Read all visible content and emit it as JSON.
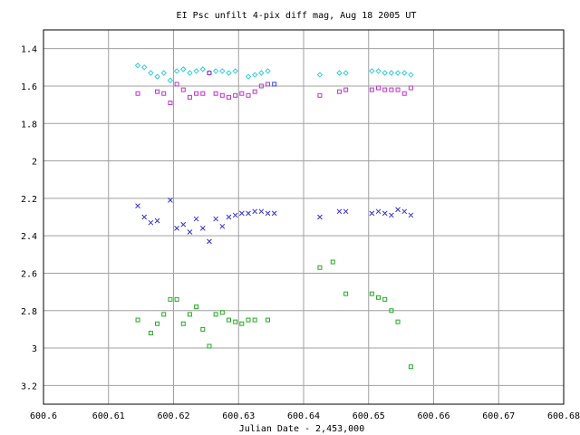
{
  "chart_data": {
    "type": "scatter",
    "title": "EI Psc unfilt 4-pix diff mag, Aug 18 2005 UT",
    "xlabel": "Julian Date - 2,453,000",
    "ylabel": "",
    "xlim": [
      600.6,
      600.68
    ],
    "ylim": [
      3.3,
      1.3
    ],
    "y_inverted": true,
    "grid": true,
    "legend": "none",
    "xticks": [
      "600.6",
      "600.61",
      "600.62",
      "600.63",
      "600.64",
      "600.65",
      "600.66",
      "600.67",
      "600.68"
    ],
    "yticks": [
      "1.4",
      "1.6",
      "1.8",
      "2",
      "2.2",
      "2.4",
      "2.6",
      "2.8",
      "3",
      "3.2"
    ],
    "series": [
      {
        "marker": "diamond",
        "color": "#33ccdd",
        "x": [
          600.6145,
          600.6155,
          600.6165,
          600.6175,
          600.6185,
          600.6195,
          600.6205,
          600.6215,
          600.6225,
          600.6235,
          600.6245,
          600.6255,
          600.6265,
          600.6275,
          600.6285,
          600.6295,
          600.6315,
          600.6325,
          600.6335,
          600.6345,
          600.6425,
          600.6455,
          600.6465,
          600.6505,
          600.6515,
          600.6525,
          600.6535,
          600.6545,
          600.6555,
          600.6565
        ],
        "y": [
          1.49,
          1.5,
          1.53,
          1.55,
          1.53,
          1.57,
          1.52,
          1.51,
          1.53,
          1.52,
          1.51,
          1.53,
          1.52,
          1.52,
          1.53,
          1.52,
          1.55,
          1.54,
          1.53,
          1.52,
          1.54,
          1.53,
          1.53,
          1.52,
          1.52,
          1.53,
          1.53,
          1.53,
          1.53,
          1.54
        ]
      },
      {
        "marker": "square",
        "color": "#bb33cc",
        "x": [
          600.6145,
          600.6175,
          600.6185,
          600.6195,
          600.6205,
          600.6215,
          600.6225,
          600.6235,
          600.6245,
          600.6255,
          600.6265,
          600.6275,
          600.6285,
          600.6295,
          600.6305,
          600.6315,
          600.6325,
          600.6335,
          600.6345,
          600.6425,
          600.6455,
          600.6465,
          600.6505,
          600.6515,
          600.6525,
          600.6535,
          600.6545,
          600.6555,
          600.6565
        ],
        "y": [
          1.64,
          1.63,
          1.64,
          1.69,
          1.59,
          1.62,
          1.66,
          1.64,
          1.64,
          1.53,
          1.64,
          1.65,
          1.66,
          1.65,
          1.64,
          1.65,
          1.63,
          1.6,
          1.59,
          1.65,
          1.63,
          1.62,
          1.62,
          1.61,
          1.62,
          1.62,
          1.62,
          1.64,
          1.61
        ]
      },
      {
        "marker": "square",
        "color": "#3344cc",
        "x": [
          600.6355
        ],
        "y": [
          1.59
        ]
      },
      {
        "marker": "cross",
        "color": "#3333cc",
        "x": [
          600.6145,
          600.6155,
          600.6165,
          600.6175,
          600.6195,
          600.6205,
          600.6215,
          600.6225,
          600.6235,
          600.6245,
          600.6255,
          600.6265,
          600.6275,
          600.6285,
          600.6295,
          600.6305,
          600.6315,
          600.6325,
          600.6335,
          600.6345,
          600.6355,
          600.6425,
          600.6455,
          600.6465,
          600.6505,
          600.6515,
          600.6525,
          600.6535,
          600.6545,
          600.6555,
          600.6565
        ],
        "y": [
          2.24,
          2.3,
          2.33,
          2.32,
          2.21,
          2.36,
          2.34,
          2.38,
          2.31,
          2.36,
          2.43,
          2.31,
          2.35,
          2.3,
          2.29,
          2.28,
          2.28,
          2.27,
          2.27,
          2.28,
          2.28,
          2.3,
          2.27,
          2.27,
          2.28,
          2.27,
          2.28,
          2.29,
          2.26,
          2.27,
          2.29
        ]
      },
      {
        "marker": "square",
        "color": "#22aa22",
        "x": [
          600.6145,
          600.6165,
          600.6175,
          600.6185,
          600.6195,
          600.6205,
          600.6215,
          600.6225,
          600.6235,
          600.6245,
          600.6255,
          600.6265,
          600.6275,
          600.6285,
          600.6295,
          600.6305,
          600.6315,
          600.6325,
          600.6345,
          600.6425,
          600.6445,
          600.6465,
          600.6505,
          600.6515,
          600.6525,
          600.6535,
          600.6545,
          600.6565
        ],
        "y": [
          2.85,
          2.92,
          2.87,
          2.82,
          2.74,
          2.74,
          2.87,
          2.82,
          2.78,
          2.9,
          2.99,
          2.82,
          2.81,
          2.85,
          2.86,
          2.87,
          2.85,
          2.85,
          2.85,
          2.57,
          2.54,
          2.71,
          2.71,
          2.73,
          2.74,
          2.8,
          2.86,
          3.1
        ]
      }
    ]
  }
}
